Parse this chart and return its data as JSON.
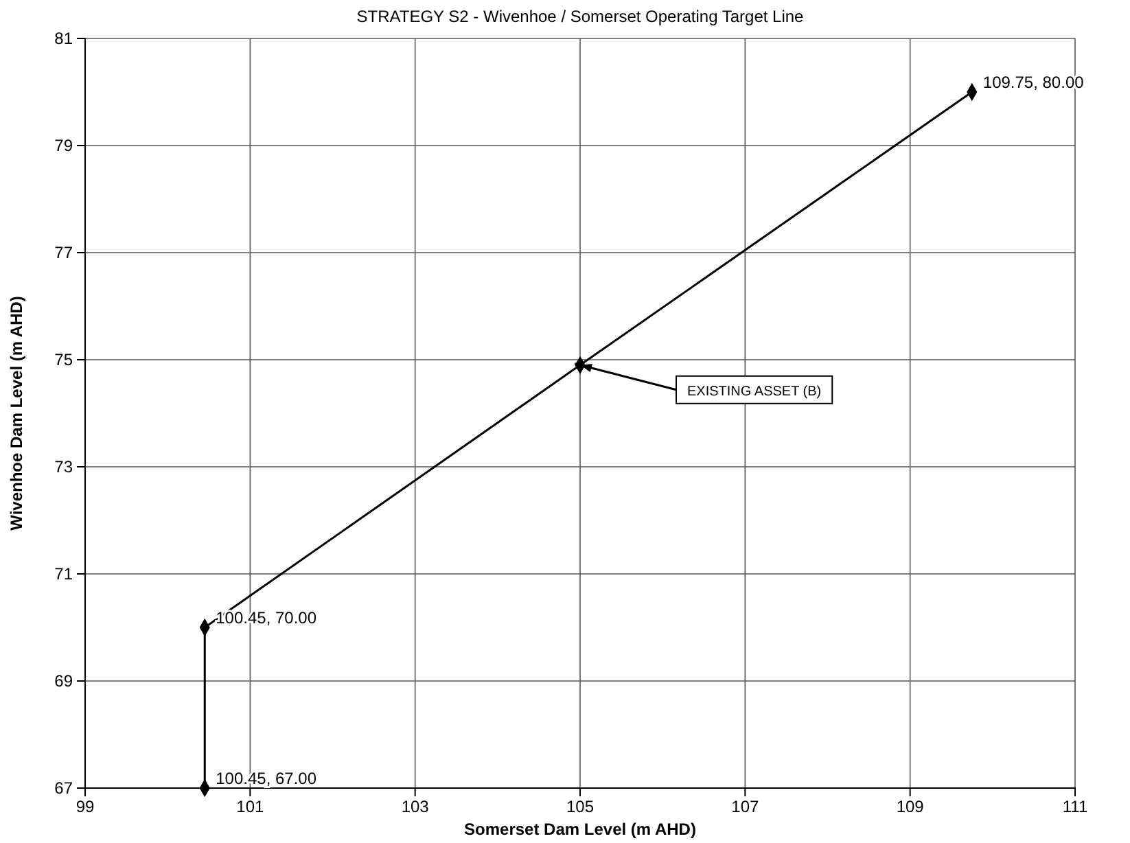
{
  "chart_data": {
    "type": "line",
    "title": "STRATEGY S2 - Wivenhoe / Somerset Operating Target Line",
    "xlabel": "Somerset Dam Level (m AHD)",
    "ylabel": "Wivenhoe Dam Level (m AHD)",
    "x": [
      100.45,
      100.45,
      105,
      109.75
    ],
    "series": [
      {
        "color": "#000000",
        "values": [
          67,
          70,
          74.9,
          80
        ],
        "value_labels": [
          "100.45, 67.00",
          "100.45, 70.00",
          null,
          "109.75, 80.00"
        ]
      }
    ],
    "annotations": [
      {
        "text": "EXISTING ASSET (B)",
        "x": 105,
        "y": 74.9
      }
    ],
    "xlim": [
      99,
      111
    ],
    "xticks": [
      99,
      101,
      103,
      105,
      107,
      109,
      111
    ],
    "ylim": [
      67,
      81
    ],
    "yticks": [
      67,
      69,
      71,
      73,
      75,
      77,
      79,
      81
    ],
    "grid": true,
    "marker": "diamond",
    "line_style": "solid"
  }
}
